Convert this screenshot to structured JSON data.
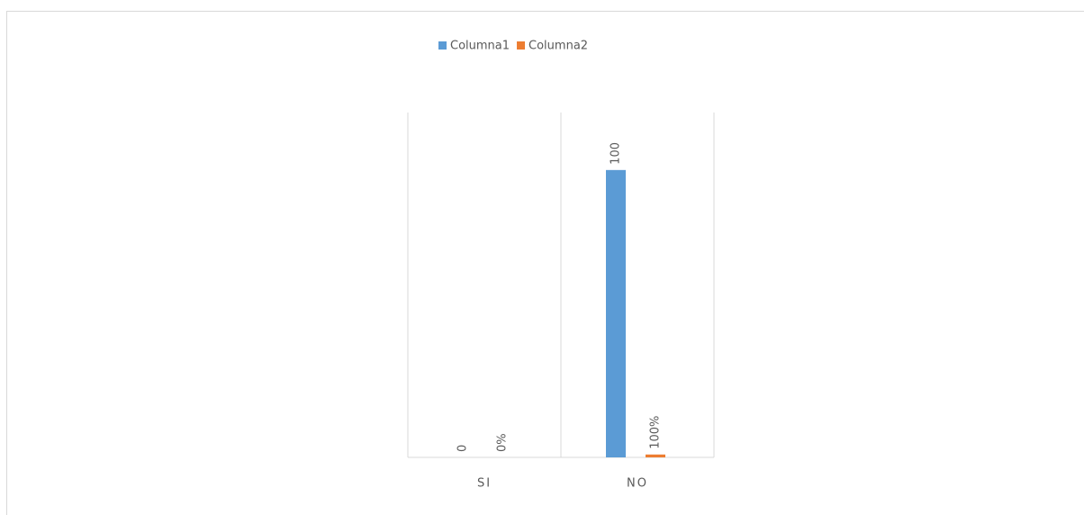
{
  "chart_data": {
    "type": "bar",
    "categories": [
      "SI",
      "NO"
    ],
    "series": [
      {
        "name": "Columna1",
        "color": "#5b9bd5",
        "values": [
          0,
          100
        ]
      },
      {
        "name": "Columna2",
        "color": "#ed7d31",
        "values": [
          0,
          1
        ],
        "value_labels": [
          "0%",
          "100%"
        ]
      }
    ],
    "ylim": [
      0,
      120
    ],
    "legend": "top"
  }
}
